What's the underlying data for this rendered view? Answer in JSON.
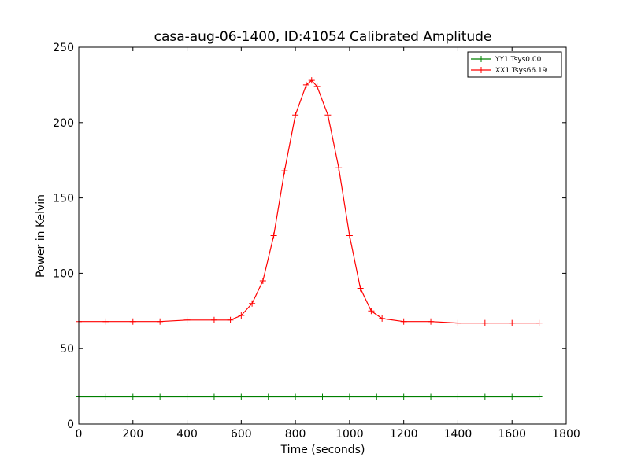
{
  "chart_data": {
    "type": "line",
    "title": "casa-aug-06-1400, ID:41054 Calibrated Amplitude",
    "xlabel": "Time (seconds)",
    "ylabel": "Power in Kelvin",
    "xlim": [
      0,
      1800
    ],
    "ylim": [
      0,
      250
    ],
    "xticks": [
      "0",
      "200",
      "400",
      "600",
      "800",
      "1000",
      "1200",
      "1400",
      "1600",
      "1800"
    ],
    "yticks": [
      "0",
      "50",
      "100",
      "150",
      "200",
      "250"
    ],
    "grid": false,
    "legend_position": "top-right",
    "series": [
      {
        "name": "YY1 Tsys0.00",
        "color": "#008000",
        "marker": "+",
        "x": [
          0,
          100,
          200,
          300,
          400,
          500,
          600,
          700,
          800,
          900,
          1000,
          1100,
          1200,
          1300,
          1400,
          1500,
          1600,
          1700
        ],
        "values": [
          18,
          18,
          18,
          18,
          18,
          18,
          18,
          18,
          18,
          18,
          18,
          18,
          18,
          18,
          18,
          18,
          18,
          18
        ]
      },
      {
        "name": "XX1 Tsys66.19",
        "color": "#ff0000",
        "marker": "+",
        "x": [
          0,
          100,
          200,
          300,
          400,
          500,
          560,
          600,
          640,
          680,
          720,
          760,
          800,
          840,
          860,
          880,
          920,
          960,
          1000,
          1040,
          1080,
          1120,
          1200,
          1300,
          1400,
          1500,
          1600,
          1700
        ],
        "values": [
          68,
          68,
          68,
          68,
          69,
          69,
          69,
          72,
          80,
          95,
          125,
          168,
          205,
          225,
          228,
          224,
          205,
          170,
          125,
          90,
          75,
          70,
          68,
          68,
          67,
          67,
          67,
          67
        ]
      }
    ]
  }
}
